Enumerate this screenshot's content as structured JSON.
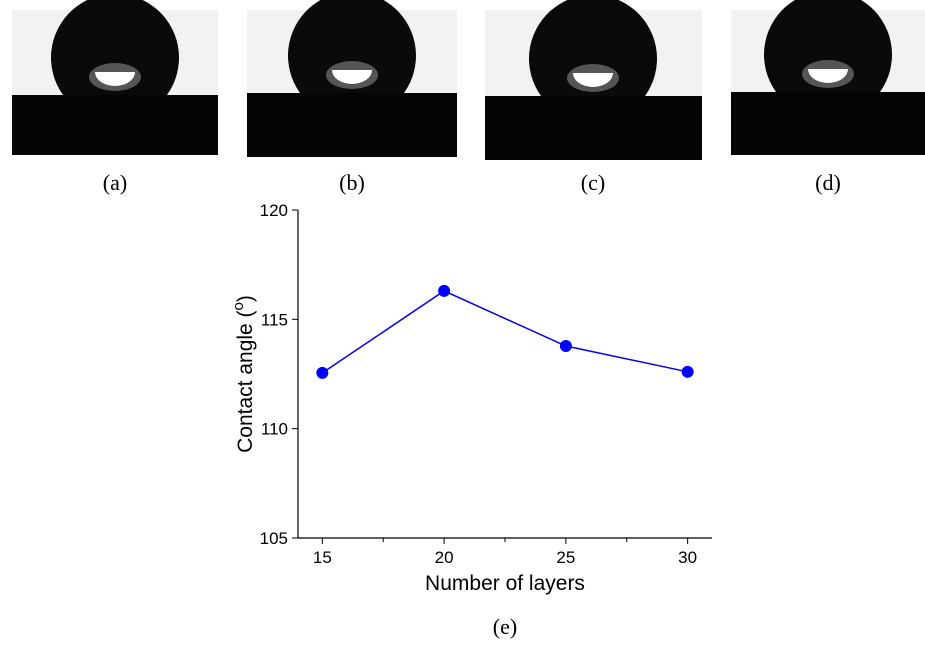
{
  "panels": [
    {
      "label": "(a)"
    },
    {
      "label": "(b)"
    },
    {
      "label": "(c)"
    },
    {
      "label": "(d)"
    }
  ],
  "chart_data": {
    "type": "line",
    "label": "(e)",
    "xlabel": "Number of layers",
    "ylabel_parts": [
      "Contact angle (",
      "o",
      ")"
    ],
    "x": [
      15,
      20,
      25,
      30
    ],
    "series": [
      {
        "color": "#0000ff",
        "values": [
          112.55,
          116.3,
          113.78,
          112.6
        ]
      }
    ],
    "xlim": [
      14,
      31
    ],
    "xticks": [
      15,
      20,
      25,
      30
    ],
    "xminorticks": [
      17.5,
      22.5,
      27.5
    ],
    "ylim": [
      105,
      120
    ],
    "yticks": [
      105,
      110,
      115,
      120
    ]
  }
}
